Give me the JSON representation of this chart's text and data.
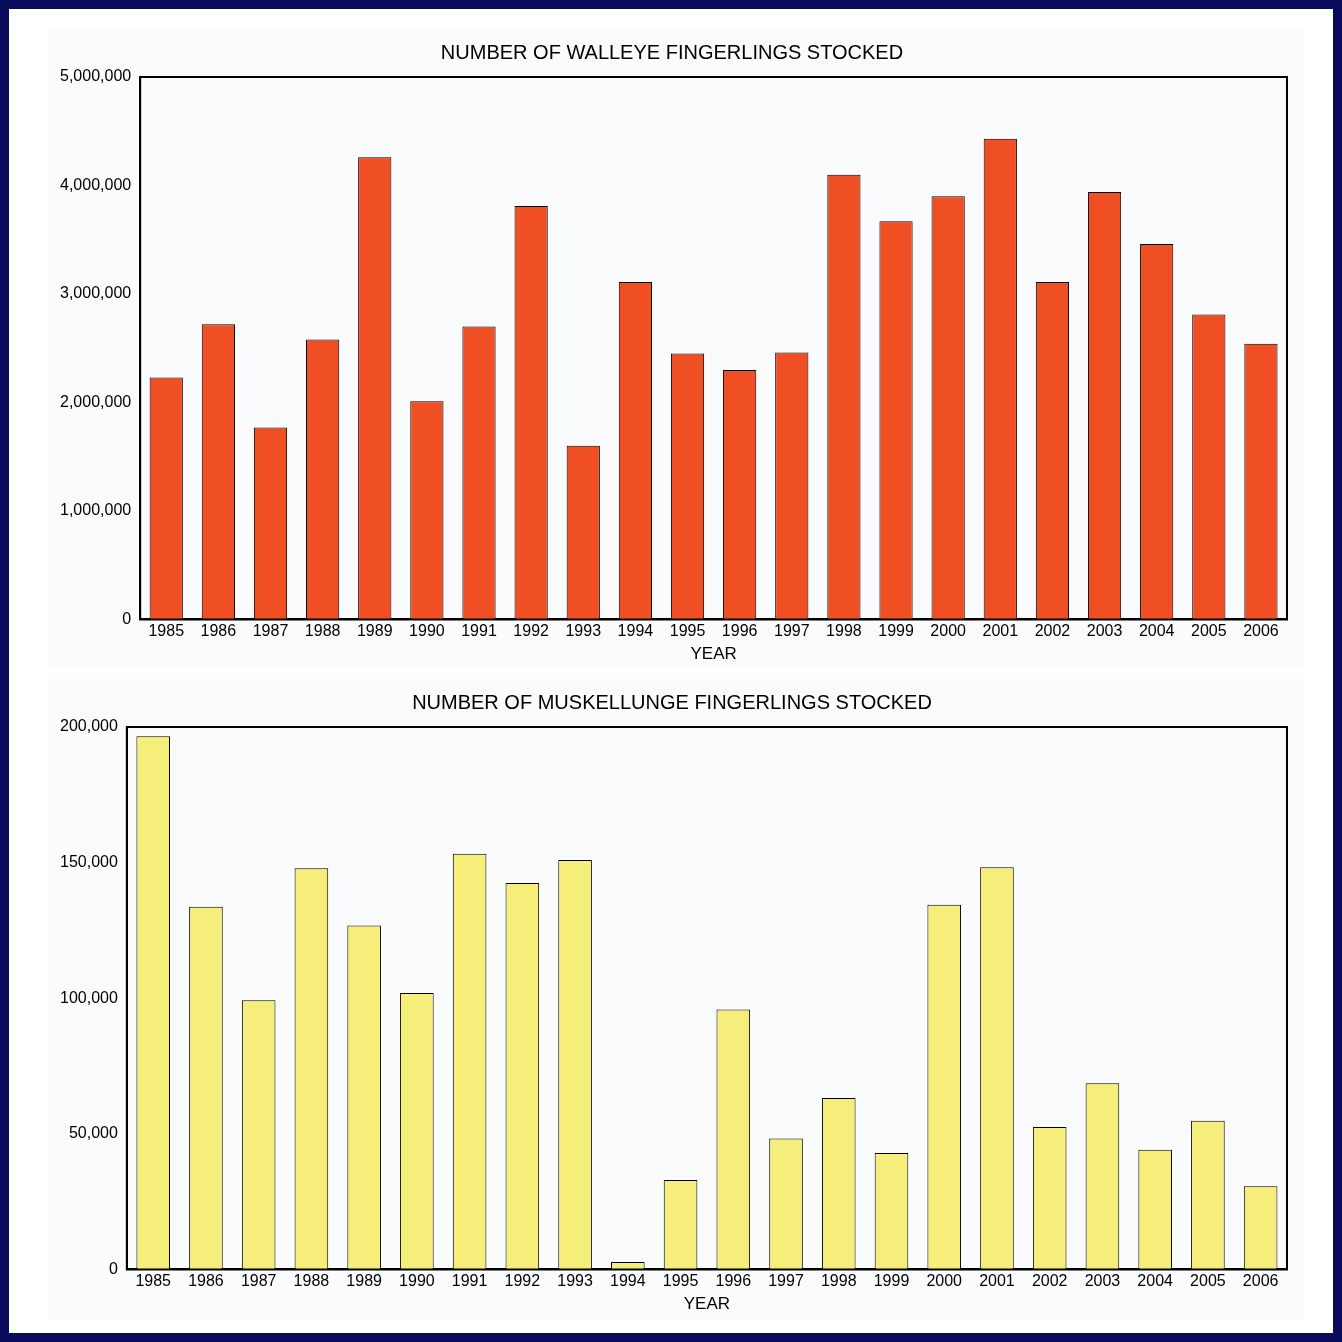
{
  "chart_data": [
    {
      "type": "bar",
      "title": "NUMBER OF WALLEYE FINGERLINGS STOCKED",
      "xlabel": "YEAR",
      "categories": [
        "1985",
        "1986",
        "1987",
        "1988",
        "1989",
        "1990",
        "1991",
        "1992",
        "1993",
        "1994",
        "1995",
        "1996",
        "1997",
        "1998",
        "1999",
        "2000",
        "2001",
        "2002",
        "2003",
        "2004",
        "2005",
        "2006"
      ],
      "values": [
        2230000,
        2720000,
        1770000,
        2580000,
        4260000,
        2010000,
        2700000,
        3810000,
        1600000,
        3110000,
        2450000,
        2300000,
        2460000,
        4100000,
        3670000,
        3900000,
        4430000,
        3110000,
        3940000,
        3460000,
        2810000,
        2540000
      ],
      "color": "#f04e23",
      "ylim": [
        0,
        5000000
      ],
      "yticks": [
        0,
        {
          "value": 1000000,
          "label": "1,000,000"
        },
        {
          "value": 2000000,
          "label": "2,000,000"
        },
        {
          "value": 3000000,
          "label": "3,000,000"
        },
        {
          "value": 4000000,
          "label": "4,000,000"
        },
        {
          "value": 5000000,
          "label": "5,000,000"
        }
      ],
      "grid": false,
      "legend": false
    },
    {
      "type": "bar",
      "title": "NUMBER OF MUSKELLUNGE FINGERLINGS STOCKED",
      "xlabel": "YEAR",
      "categories": [
        "1985",
        "1986",
        "1987",
        "1988",
        "1989",
        "1990",
        "1991",
        "1992",
        "1993",
        "1994",
        "1995",
        "1996",
        "1997",
        "1998",
        "1999",
        "2000",
        "2001",
        "2002",
        "2003",
        "2004",
        "2005",
        "2006"
      ],
      "values": [
        196600,
        133700,
        99200,
        147900,
        126800,
        101900,
        153300,
        142500,
        151000,
        2700,
        33000,
        95800,
        48300,
        63200,
        42900,
        134500,
        148300,
        52500,
        68600,
        44100,
        54800,
        30700
      ],
      "color": "#f5ee7a",
      "ylim": [
        0,
        200000
      ],
      "yticks": [
        0,
        {
          "value": 50000,
          "label": "50,000"
        },
        {
          "value": 100000,
          "label": "100,000"
        },
        {
          "value": 150000,
          "label": "150,000"
        },
        {
          "value": 200000,
          "label": "200,000"
        }
      ],
      "grid": false,
      "legend": false
    }
  ]
}
